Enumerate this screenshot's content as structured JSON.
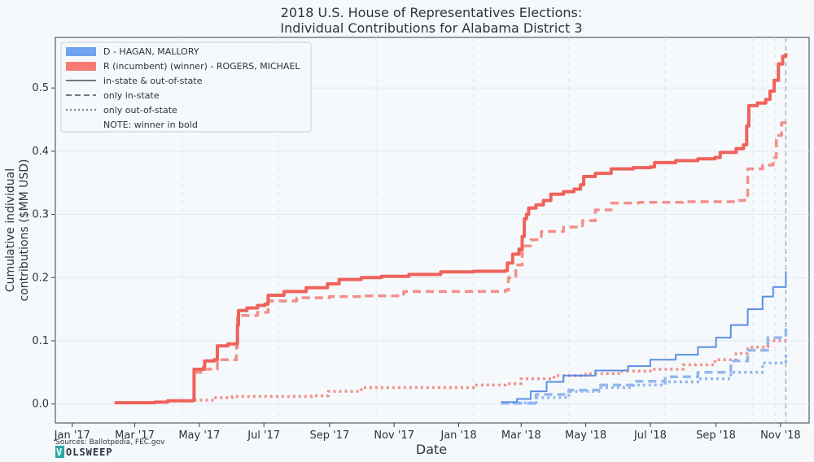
{
  "chart_data": {
    "type": "line",
    "title_lines": [
      "2018 U.S. House of Representatives Elections:",
      "Individual Contributions for Alabama District 3"
    ],
    "xlabel": "Date",
    "ylabel_lines": [
      "Cumulative individual",
      "contributions ($MM USD)"
    ],
    "x_ticks": [
      {
        "date": "2017-01-01",
        "label": "Jan '17"
      },
      {
        "date": "2017-03-01",
        "label": "Mar '17"
      },
      {
        "date": "2017-05-01",
        "label": "May '17"
      },
      {
        "date": "2017-07-01",
        "label": "Jul '17"
      },
      {
        "date": "2017-09-01",
        "label": "Sep '17"
      },
      {
        "date": "2017-11-01",
        "label": "Nov '17"
      },
      {
        "date": "2018-01-01",
        "label": "Jan '18"
      },
      {
        "date": "2018-03-01",
        "label": "Mar '18"
      },
      {
        "date": "2018-05-01",
        "label": "May '18"
      },
      {
        "date": "2018-07-01",
        "label": "Jul '18"
      },
      {
        "date": "2018-09-01",
        "label": "Sep '18"
      },
      {
        "date": "2018-11-01",
        "label": "Nov '18"
      }
    ],
    "y_ticks": [
      0.0,
      0.1,
      0.2,
      0.3,
      0.4,
      0.5
    ],
    "y_tick_labels": [
      "0.0",
      "0.1",
      "0.2",
      "0.3",
      "0.4",
      "0.5"
    ],
    "xlim": [
      "2016-12-16",
      "2018-11-28"
    ],
    "ylim": [
      -0.03,
      0.58
    ],
    "grid": true,
    "legend_position": "top-left",
    "election_date": "2018-11-06",
    "vertical_dashed_dates": [
      "2017-04-15",
      "2017-07-15",
      "2017-10-15",
      "2018-01-15",
      "2018-04-15",
      "2018-07-15",
      "2018-10-06",
      "2018-10-15",
      "2018-10-27"
    ],
    "legend": {
      "entries": [
        {
          "label": "D - HAGAN, MALLORY",
          "kind": "patch",
          "color": "#6fa3ef"
        },
        {
          "label": "R (incumbent) (winner) - ROGERS, MICHAEL",
          "kind": "patch",
          "color": "#f77b74"
        },
        {
          "label": "in-state & out-of-state",
          "kind": "solid",
          "color": "#707a87"
        },
        {
          "label": "only in-state",
          "kind": "dashed",
          "color": "#707a87"
        },
        {
          "label": "only out-of-state",
          "kind": "dotted",
          "color": "#707a87"
        },
        {
          "label": "NOTE: winner in bold",
          "kind": "none",
          "color": "#707a87"
        }
      ]
    },
    "series": [
      {
        "party": "R",
        "style": "solid",
        "color": "#f0625c",
        "bold": true,
        "points": [
          [
            "2017-02-10",
            0.002
          ],
          [
            "2017-03-20",
            0.003
          ],
          [
            "2017-04-01",
            0.005
          ],
          [
            "2017-04-25",
            0.006
          ],
          [
            "2017-04-26",
            0.055
          ],
          [
            "2017-05-05",
            0.058
          ],
          [
            "2017-05-06",
            0.068
          ],
          [
            "2017-05-15",
            0.07
          ],
          [
            "2017-05-18",
            0.092
          ],
          [
            "2017-05-28",
            0.095
          ],
          [
            "2017-06-05",
            0.096
          ],
          [
            "2017-06-06",
            0.125
          ],
          [
            "2017-06-07",
            0.148
          ],
          [
            "2017-06-15",
            0.152
          ],
          [
            "2017-06-25",
            0.156
          ],
          [
            "2017-07-02",
            0.158
          ],
          [
            "2017-07-05",
            0.172
          ],
          [
            "2017-07-20",
            0.178
          ],
          [
            "2017-08-10",
            0.184
          ],
          [
            "2017-08-30",
            0.19
          ],
          [
            "2017-09-10",
            0.197
          ],
          [
            "2017-10-01",
            0.2
          ],
          [
            "2017-10-20",
            0.202
          ],
          [
            "2017-11-15",
            0.205
          ],
          [
            "2017-12-15",
            0.209
          ],
          [
            "2018-01-15",
            0.21
          ],
          [
            "2018-02-14",
            0.211
          ],
          [
            "2018-02-16",
            0.223
          ],
          [
            "2018-02-21",
            0.237
          ],
          [
            "2018-02-27",
            0.245
          ],
          [
            "2018-03-02",
            0.265
          ],
          [
            "2018-03-04",
            0.293
          ],
          [
            "2018-03-06",
            0.3
          ],
          [
            "2018-03-08",
            0.31
          ],
          [
            "2018-03-15",
            0.315
          ],
          [
            "2018-03-22",
            0.322
          ],
          [
            "2018-03-29",
            0.332
          ],
          [
            "2018-04-10",
            0.336
          ],
          [
            "2018-04-20",
            0.34
          ],
          [
            "2018-04-26",
            0.347
          ],
          [
            "2018-04-29",
            0.36
          ],
          [
            "2018-05-10",
            0.365
          ],
          [
            "2018-05-25",
            0.372
          ],
          [
            "2018-06-15",
            0.374
          ],
          [
            "2018-07-01",
            0.375
          ],
          [
            "2018-07-05",
            0.382
          ],
          [
            "2018-07-25",
            0.385
          ],
          [
            "2018-08-15",
            0.388
          ],
          [
            "2018-08-31",
            0.39
          ],
          [
            "2018-09-05",
            0.398
          ],
          [
            "2018-09-20",
            0.404
          ],
          [
            "2018-09-27",
            0.41
          ],
          [
            "2018-09-30",
            0.44
          ],
          [
            "2018-10-02",
            0.472
          ],
          [
            "2018-10-10",
            0.476
          ],
          [
            "2018-10-18",
            0.482
          ],
          [
            "2018-10-22",
            0.495
          ],
          [
            "2018-10-26",
            0.512
          ],
          [
            "2018-10-30",
            0.538
          ],
          [
            "2018-11-03",
            0.55
          ],
          [
            "2018-11-06",
            0.555
          ]
        ]
      },
      {
        "party": "R",
        "style": "dashed",
        "color": "#f48f8a",
        "bold": false,
        "points": [
          [
            "2017-04-26",
            0.05
          ],
          [
            "2017-05-06",
            0.055
          ],
          [
            "2017-05-18",
            0.07
          ],
          [
            "2017-06-05",
            0.09
          ],
          [
            "2017-06-06",
            0.14
          ],
          [
            "2017-06-25",
            0.145
          ],
          [
            "2017-07-05",
            0.163
          ],
          [
            "2017-08-01",
            0.168
          ],
          [
            "2017-09-01",
            0.17
          ],
          [
            "2017-10-01",
            0.171
          ],
          [
            "2017-11-10",
            0.178
          ],
          [
            "2018-02-14",
            0.18
          ],
          [
            "2018-02-17",
            0.2
          ],
          [
            "2018-02-24",
            0.22
          ],
          [
            "2018-03-02",
            0.25
          ],
          [
            "2018-03-10",
            0.26
          ],
          [
            "2018-03-20",
            0.273
          ],
          [
            "2018-04-10",
            0.28
          ],
          [
            "2018-04-28",
            0.29
          ],
          [
            "2018-05-10",
            0.307
          ],
          [
            "2018-05-25",
            0.318
          ],
          [
            "2018-06-20",
            0.319
          ],
          [
            "2018-08-01",
            0.32
          ],
          [
            "2018-09-20",
            0.322
          ],
          [
            "2018-09-28",
            0.33
          ],
          [
            "2018-10-01",
            0.372
          ],
          [
            "2018-10-15",
            0.378
          ],
          [
            "2018-10-25",
            0.39
          ],
          [
            "2018-10-28",
            0.425
          ],
          [
            "2018-11-02",
            0.445
          ],
          [
            "2018-11-06",
            0.448
          ]
        ]
      },
      {
        "party": "R",
        "style": "dotted",
        "color": "#f48f8a",
        "bold": false,
        "points": [
          [
            "2017-04-26",
            0.006
          ],
          [
            "2017-05-15",
            0.01
          ],
          [
            "2017-06-01",
            0.012
          ],
          [
            "2017-08-15",
            0.013
          ],
          [
            "2017-08-31",
            0.02
          ],
          [
            "2017-10-01",
            0.026
          ],
          [
            "2018-01-15",
            0.03
          ],
          [
            "2018-02-14",
            0.032
          ],
          [
            "2018-03-01",
            0.04
          ],
          [
            "2018-04-01",
            0.045
          ],
          [
            "2018-05-01",
            0.048
          ],
          [
            "2018-06-01",
            0.052
          ],
          [
            "2018-07-01",
            0.055
          ],
          [
            "2018-08-01",
            0.062
          ],
          [
            "2018-08-31",
            0.07
          ],
          [
            "2018-09-20",
            0.08
          ],
          [
            "2018-10-01",
            0.09
          ],
          [
            "2018-10-20",
            0.1
          ],
          [
            "2018-11-06",
            0.1
          ]
        ]
      },
      {
        "party": "D",
        "style": "solid",
        "color": "#5b8fe3",
        "bold": false,
        "points": [
          [
            "2018-02-10",
            0.003
          ],
          [
            "2018-02-25",
            0.008
          ],
          [
            "2018-03-10",
            0.02
          ],
          [
            "2018-03-25",
            0.035
          ],
          [
            "2018-04-10",
            0.045
          ],
          [
            "2018-05-10",
            0.053
          ],
          [
            "2018-06-10",
            0.06
          ],
          [
            "2018-07-01",
            0.07
          ],
          [
            "2018-07-25",
            0.078
          ],
          [
            "2018-08-15",
            0.09
          ],
          [
            "2018-09-01",
            0.105
          ],
          [
            "2018-09-15",
            0.125
          ],
          [
            "2018-10-01",
            0.15
          ],
          [
            "2018-10-15",
            0.17
          ],
          [
            "2018-10-25",
            0.185
          ],
          [
            "2018-11-06",
            0.21
          ]
        ]
      },
      {
        "party": "D",
        "style": "dashed",
        "color": "#93b7ef",
        "bold": false,
        "points": [
          [
            "2018-02-10",
            0.001
          ],
          [
            "2018-03-15",
            0.015
          ],
          [
            "2018-04-15",
            0.022
          ],
          [
            "2018-05-15",
            0.03
          ],
          [
            "2018-06-15",
            0.036
          ],
          [
            "2018-07-15",
            0.043
          ],
          [
            "2018-08-15",
            0.05
          ],
          [
            "2018-09-15",
            0.068
          ],
          [
            "2018-10-01",
            0.085
          ],
          [
            "2018-10-20",
            0.105
          ],
          [
            "2018-11-06",
            0.128
          ]
        ]
      },
      {
        "party": "D",
        "style": "dotted",
        "color": "#93b7ef",
        "bold": false,
        "points": [
          [
            "2018-02-10",
            0.002
          ],
          [
            "2018-03-15",
            0.01
          ],
          [
            "2018-04-15",
            0.02
          ],
          [
            "2018-05-15",
            0.026
          ],
          [
            "2018-06-15",
            0.03
          ],
          [
            "2018-07-15",
            0.035
          ],
          [
            "2018-08-15",
            0.04
          ],
          [
            "2018-09-15",
            0.05
          ],
          [
            "2018-10-15",
            0.065
          ],
          [
            "2018-11-06",
            0.082
          ]
        ]
      }
    ]
  },
  "footer": {
    "sources": "Sources: Ballotpedia, FEC.gov",
    "logo_badge": "V",
    "logo_rest": "OLSWEEP"
  }
}
